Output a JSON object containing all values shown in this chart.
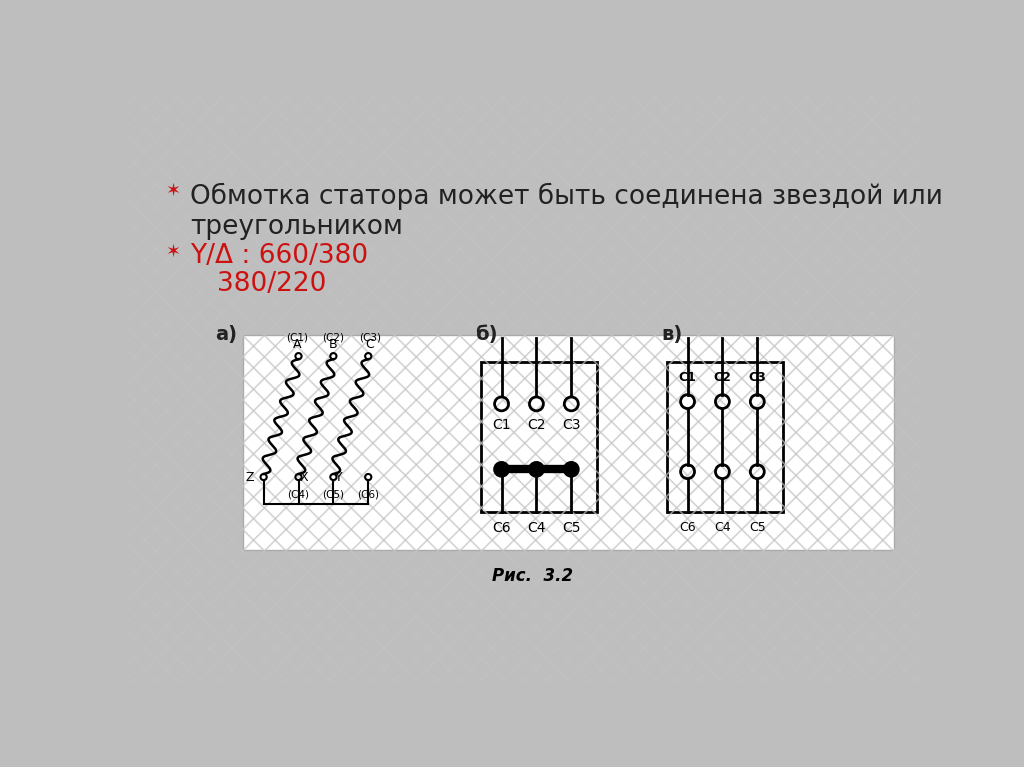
{
  "bg_color": "#bebebe",
  "slide_bg": "#d4d4d4",
  "title_text": "Обмотка статора может быть соединена звездой или",
  "title_text2": "треугольником",
  "bullet1_text": "Y/Δ : 660/380",
  "bullet2_text": "380/220",
  "label_a": "а)",
  "label_b": "б)",
  "label_v": "в)",
  "fig_caption": "Рис.  3.2",
  "text_color": "#222222",
  "red_color": "#cc1111",
  "stripe_color": "#c8c8c8",
  "stripe_color2": "#b8b8b8"
}
